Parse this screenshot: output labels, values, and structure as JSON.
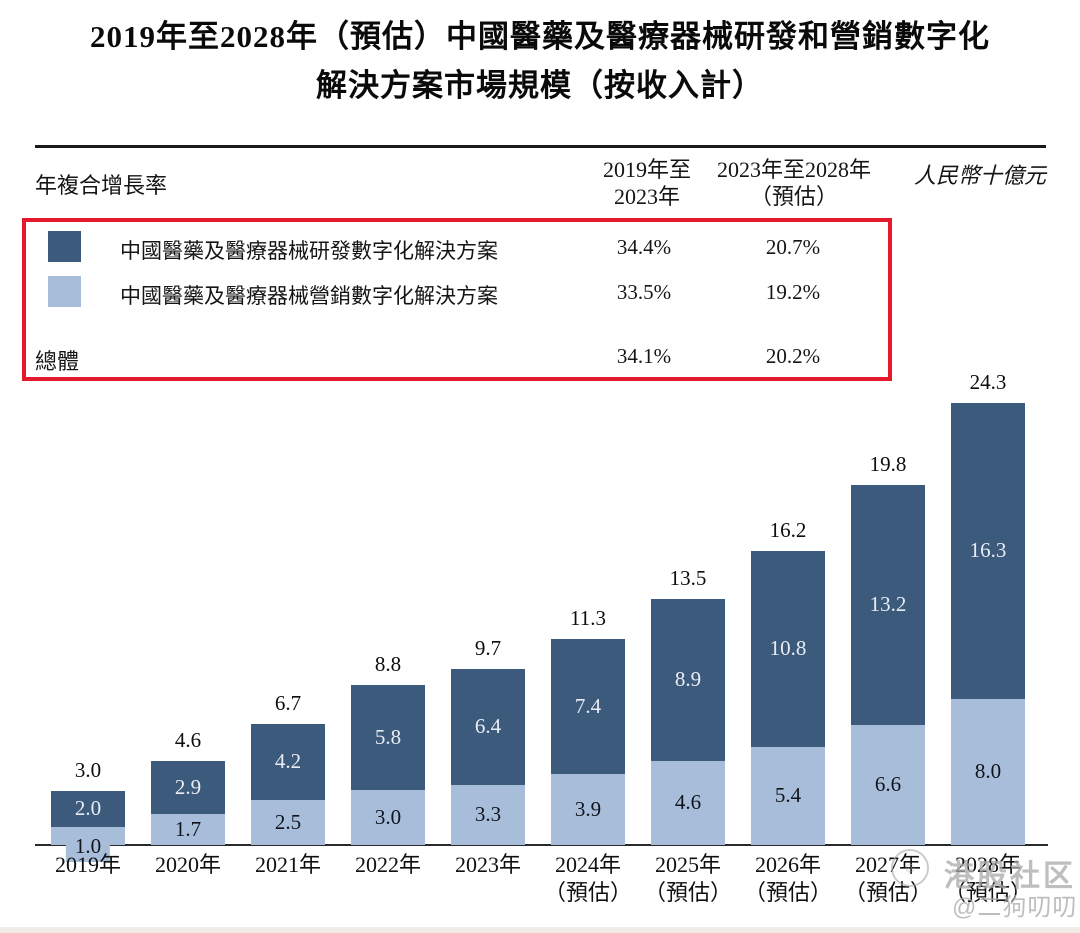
{
  "title": {
    "line1": "2019年至2028年（預估）中國醫藥及醫療器械研發和營銷數字化",
    "line2": "解決方案市場規模（按收入計）"
  },
  "table": {
    "row_header": "年複合增長率",
    "col1_header_line1": "2019年至",
    "col1_header_line2": "2023年",
    "col2_header_line1": "2023年至2028年",
    "col2_header_line2": "（預估）",
    "unit_label": "人民幣十億元",
    "rows": [
      {
        "swatch_color": "#3c5a7c",
        "label": "中國醫藥及醫療器械研發數字化解決方案",
        "cagr_2019_2023": "34.4%",
        "cagr_2023_2028": "20.7%"
      },
      {
        "swatch_color": "#a8bdd9",
        "label": "中國醫藥及醫療器械營銷數字化解決方案",
        "cagr_2019_2023": "33.5%",
        "cagr_2023_2028": "19.2%"
      },
      {
        "swatch_color": null,
        "label": "總體",
        "cagr_2019_2023": "34.1%",
        "cagr_2023_2028": "20.2%"
      }
    ]
  },
  "chart_data": {
    "type": "bar",
    "stacked": true,
    "title": "2019年至2028年（預估）中國醫藥及醫療器械研發和營銷數字化解決方案市場規模（按收入計）",
    "unit": "人民幣十億元",
    "categories": [
      {
        "label": "2019年",
        "sublabel": ""
      },
      {
        "label": "2020年",
        "sublabel": ""
      },
      {
        "label": "2021年",
        "sublabel": ""
      },
      {
        "label": "2022年",
        "sublabel": ""
      },
      {
        "label": "2023年",
        "sublabel": ""
      },
      {
        "label": "2024年",
        "sublabel": "（預估）"
      },
      {
        "label": "2025年",
        "sublabel": "（預估）"
      },
      {
        "label": "2026年",
        "sublabel": "（預估）"
      },
      {
        "label": "2027年",
        "sublabel": "（預估）"
      },
      {
        "label": "2028年",
        "sublabel": "（預估）"
      }
    ],
    "series": [
      {
        "name": "中國醫藥及醫療器械研發數字化解決方案",
        "color": "#3c5a7c",
        "values": [
          2.0,
          2.9,
          4.2,
          5.8,
          6.4,
          7.4,
          8.9,
          10.8,
          13.2,
          16.3
        ]
      },
      {
        "name": "中國醫藥及醫療器械營銷數字化解決方案",
        "color": "#a8bdd9",
        "values": [
          1.0,
          1.7,
          2.5,
          3.0,
          3.3,
          3.9,
          4.6,
          5.4,
          6.6,
          8.0
        ]
      }
    ],
    "totals": [
      3.0,
      4.6,
      6.7,
      8.8,
      9.7,
      11.3,
      13.5,
      16.2,
      19.8,
      24.3
    ],
    "ylim": [
      0,
      24.3
    ],
    "grid": false,
    "legend_position": "top-table"
  },
  "watermark": {
    "community": "港股社区",
    "handle": "@二狗叨叨"
  },
  "colors": {
    "rnd_dark_blue": "#3c5a7c",
    "marketing_light_blue": "#a8bdd9",
    "highlight_red": "#e4192b",
    "bar_white_label": "#e9ecf3"
  }
}
